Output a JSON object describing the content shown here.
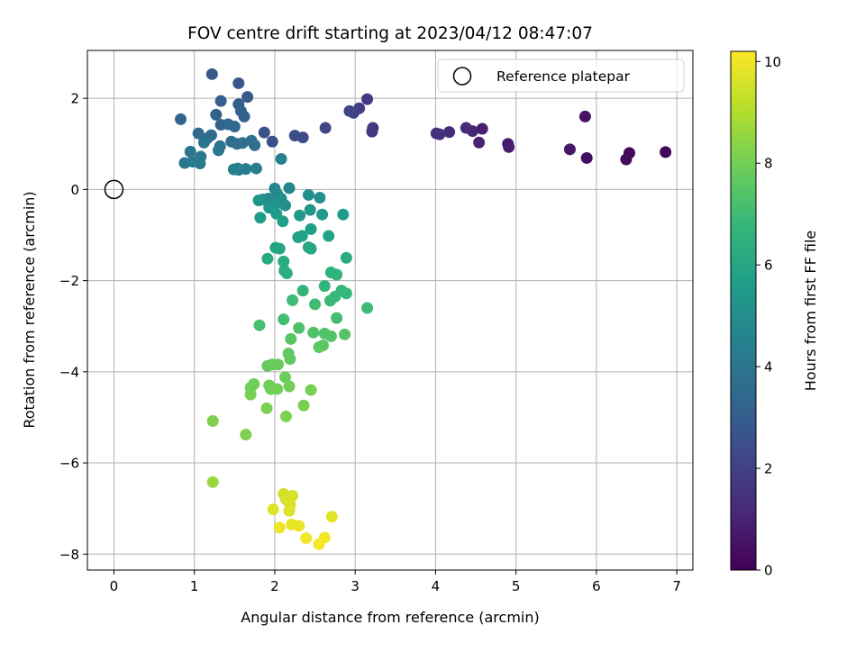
{
  "chart_data": {
    "type": "scatter",
    "title": "FOV centre drift starting at 2023/04/12 08:47:07",
    "xlabel": "Angular distance from reference (arcmin)",
    "ylabel": "Rotation from reference (arcmin)",
    "xlim": [
      -0.33,
      7.2
    ],
    "ylim": [
      -8.35,
      3.05
    ],
    "xticks": [
      0,
      1,
      2,
      3,
      4,
      5,
      6,
      7
    ],
    "xtick_labels": [
      "0",
      "1",
      "2",
      "3",
      "4",
      "5",
      "6",
      "7"
    ],
    "yticks": [
      2,
      0,
      -2,
      -4,
      -6,
      -8
    ],
    "ytick_labels": [
      "2",
      "0",
      "−2",
      "−4",
      "−6",
      "−8"
    ],
    "grid": true,
    "legend": {
      "position": "top-right",
      "entries": [
        "Reference platepar"
      ]
    },
    "reference": {
      "label": "Reference platepar",
      "x": 0,
      "y": 0
    },
    "colorbar": {
      "label": "Hours from first FF file",
      "range": [
        0,
        10.2
      ],
      "ticks": [
        0,
        2,
        4,
        6,
        8,
        10
      ],
      "tick_labels": [
        "0",
        "2",
        "4",
        "6",
        "8",
        "10"
      ],
      "colormap": "viridis",
      "colormap_stops": [
        "#440154",
        "#482878",
        "#3e4989",
        "#31688e",
        "#26828e",
        "#1f9e89",
        "#35b779",
        "#6ece58",
        "#b5de2b",
        "#fde725"
      ]
    },
    "points": [
      [
        6.86,
        0.82,
        0.1
      ],
      [
        6.41,
        0.8,
        0.2
      ],
      [
        6.37,
        0.66,
        0.3
      ],
      [
        5.88,
        0.69,
        0.4
      ],
      [
        5.86,
        1.6,
        0.5
      ],
      [
        5.67,
        0.88,
        0.6
      ],
      [
        4.9,
        1.0,
        0.7
      ],
      [
        4.91,
        0.93,
        0.8
      ],
      [
        4.58,
        1.33,
        0.9
      ],
      [
        4.54,
        1.03,
        1.0
      ],
      [
        4.46,
        1.28,
        1.1
      ],
      [
        4.38,
        1.35,
        1.2
      ],
      [
        4.17,
        1.26,
        1.3
      ],
      [
        4.05,
        1.21,
        1.4
      ],
      [
        4.01,
        1.23,
        1.5
      ],
      [
        3.22,
        1.35,
        1.6
      ],
      [
        3.21,
        1.27,
        1.7
      ],
      [
        3.15,
        1.98,
        1.8
      ],
      [
        3.05,
        1.78,
        1.9
      ],
      [
        2.98,
        1.68,
        2.0
      ],
      [
        2.93,
        1.72,
        2.1
      ],
      [
        2.63,
        1.35,
        2.2
      ],
      [
        2.35,
        1.14,
        2.3
      ],
      [
        2.25,
        1.18,
        2.4
      ],
      [
        1.97,
        1.05,
        2.5
      ],
      [
        1.87,
        1.25,
        2.6
      ],
      [
        1.55,
        2.33,
        2.7
      ],
      [
        1.22,
        2.53,
        2.8
      ],
      [
        1.66,
        2.03,
        2.9
      ],
      [
        1.33,
        1.94,
        3.0
      ],
      [
        1.55,
        1.87,
        3.05
      ],
      [
        1.58,
        1.72,
        3.1
      ],
      [
        1.62,
        1.6,
        3.15
      ],
      [
        1.27,
        1.64,
        3.2
      ],
      [
        0.83,
        1.54,
        3.25
      ],
      [
        1.33,
        1.42,
        3.3
      ],
      [
        1.42,
        1.43,
        3.35
      ],
      [
        1.5,
        1.38,
        3.4
      ],
      [
        1.05,
        1.23,
        3.45
      ],
      [
        1.16,
        1.12,
        3.5
      ],
      [
        1.21,
        1.19,
        3.55
      ],
      [
        1.46,
        1.05,
        3.6
      ],
      [
        1.53,
        1.0,
        3.65
      ],
      [
        1.6,
        1.02,
        3.7
      ],
      [
        1.71,
        1.07,
        3.75
      ],
      [
        1.75,
        0.97,
        3.8
      ],
      [
        1.32,
        0.95,
        3.85
      ],
      [
        1.12,
        1.03,
        3.9
      ],
      [
        1.3,
        0.86,
        3.95
      ],
      [
        0.95,
        0.83,
        4.0
      ],
      [
        1.08,
        0.72,
        4.05
      ],
      [
        0.88,
        0.58,
        4.1
      ],
      [
        1.07,
        0.57,
        4.15
      ],
      [
        0.98,
        0.61,
        4.2
      ],
      [
        1.64,
        0.45,
        4.25
      ],
      [
        1.49,
        0.44,
        4.3
      ],
      [
        1.55,
        0.43,
        4.35
      ],
      [
        1.77,
        0.46,
        4.4
      ],
      [
        2.08,
        0.67,
        4.45
      ],
      [
        1.54,
        0.46,
        4.5
      ],
      [
        2.0,
        0.02,
        4.6
      ],
      [
        2.18,
        0.03,
        4.7
      ],
      [
        2.03,
        -0.1,
        4.8
      ],
      [
        1.92,
        -0.2,
        4.9
      ],
      [
        1.85,
        -0.22,
        5.0
      ],
      [
        2.08,
        -0.2,
        5.05
      ],
      [
        2.13,
        -0.35,
        5.1
      ],
      [
        2.42,
        -0.12,
        5.15
      ],
      [
        2.56,
        -0.18,
        5.2
      ],
      [
        1.8,
        -0.24,
        5.25
      ],
      [
        2.0,
        -0.34,
        5.3
      ],
      [
        1.93,
        -0.4,
        5.35
      ],
      [
        2.44,
        -0.45,
        5.4
      ],
      [
        2.31,
        -0.57,
        5.45
      ],
      [
        2.59,
        -0.55,
        5.5
      ],
      [
        2.85,
        -0.55,
        5.55
      ],
      [
        1.82,
        -0.62,
        5.6
      ],
      [
        2.02,
        -0.53,
        5.65
      ],
      [
        2.1,
        -0.7,
        5.7
      ],
      [
        2.45,
        -0.87,
        5.75
      ],
      [
        2.34,
        -1.02,
        5.8
      ],
      [
        2.29,
        -1.05,
        5.85
      ],
      [
        2.67,
        -1.02,
        5.9
      ],
      [
        2.01,
        -1.28,
        5.95
      ],
      [
        2.06,
        -1.3,
        6.0
      ],
      [
        2.42,
        -1.27,
        6.05
      ],
      [
        2.45,
        -1.3,
        6.1
      ],
      [
        1.91,
        -1.52,
        6.15
      ],
      [
        2.11,
        -1.58,
        6.2
      ],
      [
        2.89,
        -1.5,
        6.25
      ],
      [
        2.12,
        -1.78,
        6.3
      ],
      [
        2.15,
        -1.84,
        6.4
      ],
      [
        2.7,
        -1.82,
        6.5
      ],
      [
        2.77,
        -1.87,
        6.6
      ],
      [
        2.62,
        -2.12,
        6.65
      ],
      [
        2.35,
        -2.22,
        6.7
      ],
      [
        2.83,
        -2.22,
        6.75
      ],
      [
        2.89,
        -2.28,
        6.8
      ],
      [
        2.75,
        -2.35,
        6.85
      ],
      [
        2.69,
        -2.44,
        6.9
      ],
      [
        3.15,
        -2.6,
        6.95
      ],
      [
        2.22,
        -2.43,
        7.0
      ],
      [
        2.5,
        -2.52,
        7.05
      ],
      [
        2.77,
        -2.82,
        7.1
      ],
      [
        2.11,
        -2.85,
        7.15
      ],
      [
        1.81,
        -2.98,
        7.2
      ],
      [
        2.3,
        -3.04,
        7.25
      ],
      [
        2.48,
        -3.14,
        7.3
      ],
      [
        2.62,
        -3.16,
        7.35
      ],
      [
        2.7,
        -3.22,
        7.4
      ],
      [
        2.87,
        -3.18,
        7.45
      ],
      [
        2.2,
        -3.28,
        7.5
      ],
      [
        2.6,
        -3.42,
        7.55
      ],
      [
        2.55,
        -3.46,
        7.6
      ],
      [
        2.17,
        -3.6,
        7.65
      ],
      [
        2.19,
        -3.72,
        7.7
      ],
      [
        1.91,
        -3.87,
        7.75
      ],
      [
        1.97,
        -3.84,
        7.8
      ],
      [
        2.04,
        -3.84,
        7.82
      ],
      [
        2.13,
        -4.12,
        7.85
      ],
      [
        1.74,
        -4.27,
        7.9
      ],
      [
        1.7,
        -4.35,
        7.92
      ],
      [
        1.93,
        -4.3,
        7.95
      ],
      [
        1.95,
        -4.38,
        7.97
      ],
      [
        2.18,
        -4.32,
        8.0
      ],
      [
        2.03,
        -4.38,
        8.02
      ],
      [
        1.7,
        -4.5,
        8.05
      ],
      [
        2.45,
        -4.4,
        8.08
      ],
      [
        2.36,
        -4.74,
        8.1
      ],
      [
        1.9,
        -4.8,
        8.12
      ],
      [
        2.14,
        -4.98,
        8.15
      ],
      [
        1.23,
        -5.08,
        8.18
      ],
      [
        1.64,
        -5.38,
        8.2
      ],
      [
        1.23,
        -6.42,
        8.6
      ],
      [
        2.11,
        -6.68,
        9.5
      ],
      [
        2.22,
        -6.72,
        9.55
      ],
      [
        2.14,
        -6.8,
        9.6
      ],
      [
        2.19,
        -6.92,
        9.65
      ],
      [
        1.98,
        -7.02,
        9.7
      ],
      [
        2.18,
        -7.05,
        9.75
      ],
      [
        2.71,
        -7.18,
        9.8
      ],
      [
        2.21,
        -7.35,
        9.85
      ],
      [
        2.3,
        -7.38,
        9.9
      ],
      [
        2.06,
        -7.42,
        9.95
      ],
      [
        2.39,
        -7.65,
        10.0
      ],
      [
        2.62,
        -7.64,
        10.05
      ],
      [
        2.55,
        -7.78,
        10.1
      ]
    ]
  }
}
